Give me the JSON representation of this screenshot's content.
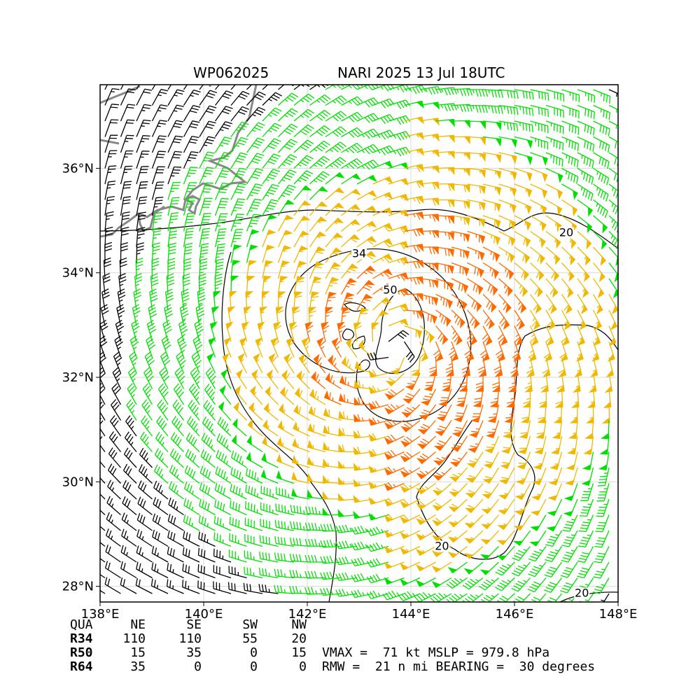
{
  "header": {
    "storm_id": "WP062025",
    "storm_time": "NARI 2025 13 Jul 18UTC"
  },
  "map": {
    "lon_range": [
      138,
      148
    ],
    "lat_range": [
      27.7,
      37.6
    ],
    "x_ticks": [
      {
        "value": 138,
        "label": "138°E"
      },
      {
        "value": 140,
        "label": "140°E"
      },
      {
        "value": 142,
        "label": "142°E"
      },
      {
        "value": 144,
        "label": "144°E"
      },
      {
        "value": 146,
        "label": "146°E"
      },
      {
        "value": 148,
        "label": "148°E"
      }
    ],
    "y_ticks": [
      {
        "value": 28,
        "label": "28°N"
      },
      {
        "value": 30,
        "label": "30°N"
      },
      {
        "value": 32,
        "label": "32°N"
      },
      {
        "value": 34,
        "label": "34°N"
      },
      {
        "value": 36,
        "label": "36°N"
      }
    ],
    "grid": true,
    "storm_center": {
      "lon": 143.6,
      "lat": 32.6
    },
    "contour_labels": [
      {
        "text": "34",
        "lon": 143.0,
        "lat": 34.3
      },
      {
        "text": "50",
        "lon": 143.6,
        "lat": 33.6
      },
      {
        "text": "20",
        "lon": 147.0,
        "lat": 34.7
      },
      {
        "text": "20",
        "lon": 144.6,
        "lat": 28.7
      },
      {
        "text": "20",
        "lon": 147.3,
        "lat": 27.8
      }
    ],
    "barb_colors": {
      "below_34kt": "#000000",
      "34_to_50kt": "#00e000",
      "50_to_64kt": "#f0b800",
      "above_64kt": "#ff6a00"
    },
    "coastline_color": "#888888"
  },
  "wind_radii": {
    "headers": [
      "QUA",
      "NE",
      "SE",
      "SW",
      "NW"
    ],
    "rows": [
      {
        "label": "R34",
        "values": [
          "110",
          "110",
          "55",
          "20"
        ]
      },
      {
        "label": "R50",
        "values": [
          "15",
          "35",
          "0",
          "15"
        ]
      },
      {
        "label": "R64",
        "values": [
          "35",
          "0",
          "0",
          "0"
        ]
      }
    ]
  },
  "summary": {
    "line1": "VMAX =  71 kt MSLP = 979.8 hPa",
    "line2": "RMW =  21 n mi BEARING =  30 degrees"
  }
}
